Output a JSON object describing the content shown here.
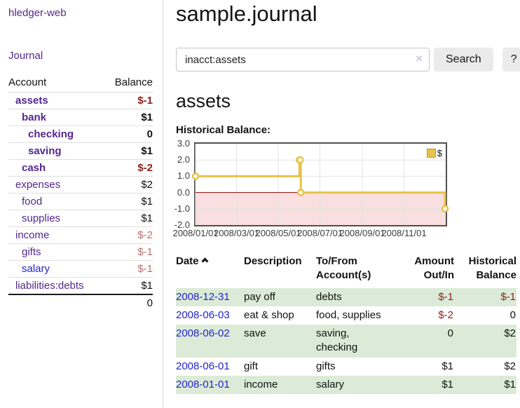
{
  "sidebar": {
    "app_title": "hledger-web",
    "journal_label": "Journal",
    "accounts_table": {
      "header_account": "Account",
      "header_balance": "Balance",
      "rows": [
        {
          "name": "assets",
          "balance": "$-1",
          "indent": 1,
          "bold": true,
          "name_color": "purple",
          "balance_tone": "negative"
        },
        {
          "name": "bank",
          "balance": "$1",
          "indent": 2,
          "bold": true,
          "name_color": "purple",
          "balance_tone": "normal"
        },
        {
          "name": "checking",
          "balance": "0",
          "indent": 3,
          "bold": true,
          "name_color": "purple",
          "balance_tone": "normal"
        },
        {
          "name": "saving",
          "balance": "$1",
          "indent": 3,
          "bold": true,
          "name_color": "purple",
          "balance_tone": "normal"
        },
        {
          "name": "cash",
          "balance": "$-2",
          "indent": 2,
          "bold": true,
          "name_color": "purple",
          "balance_tone": "negative"
        },
        {
          "name": "expenses",
          "balance": "$2",
          "indent": 1,
          "bold": false,
          "name_color": "purple",
          "balance_tone": "normal"
        },
        {
          "name": "food",
          "balance": "$1",
          "indent": 2,
          "bold": false,
          "name_color": "purple",
          "balance_tone": "normal"
        },
        {
          "name": "supplies",
          "balance": "$1",
          "indent": 2,
          "bold": false,
          "name_color": "purple",
          "balance_tone": "normal"
        },
        {
          "name": "income",
          "balance": "$-2",
          "indent": 1,
          "bold": false,
          "name_color": "purple",
          "balance_tone": "negative-soft"
        },
        {
          "name": "gifts",
          "balance": "$-1",
          "indent": 2,
          "bold": false,
          "name_color": "purple",
          "balance_tone": "negative-soft"
        },
        {
          "name": "salary",
          "balance": "$-1",
          "indent": 2,
          "bold": false,
          "name_color": "blue",
          "balance_tone": "negative-soft"
        },
        {
          "name": "liabilities:debts",
          "balance": "$1",
          "indent": 1,
          "bold": false,
          "name_color": "purple",
          "balance_tone": "normal"
        }
      ],
      "total_balance": "0"
    }
  },
  "main": {
    "title": "sample.journal",
    "search": {
      "value": "inacct:assets",
      "clear_icon": "×",
      "search_label": "Search",
      "help_label": "?"
    },
    "account_heading": "assets",
    "chart_heading": "Historical Balance:",
    "register": {
      "headers": {
        "date": "Date",
        "description": "Description",
        "accounts": "To/From\nAccount(s)",
        "amount": "Amount\nOut/In",
        "balance": "Historical\nBalance"
      },
      "sort_icon": "chevron-up",
      "rows": [
        {
          "date": "2008-12-31",
          "description": "pay off",
          "accounts": "debts",
          "amount": "$-1",
          "balance": "$-1",
          "amount_negative": true,
          "balance_negative": true
        },
        {
          "date": "2008-06-03",
          "description": "eat & shop",
          "accounts": "food, supplies",
          "amount": "$-2",
          "balance": "0",
          "amount_negative": true,
          "balance_negative": false
        },
        {
          "date": "2008-06-02",
          "description": "save",
          "accounts": "saving,\nchecking",
          "amount": "0",
          "balance": "$2",
          "amount_negative": false,
          "balance_negative": false
        },
        {
          "date": "2008-06-01",
          "description": "gift",
          "accounts": "gifts",
          "amount": "$1",
          "balance": "$2",
          "amount_negative": false,
          "balance_negative": false
        },
        {
          "date": "2008-01-01",
          "description": "income",
          "accounts": "salary",
          "amount": "$1",
          "balance": "$1",
          "amount_negative": false,
          "balance_negative": false
        }
      ]
    }
  },
  "chart_data": {
    "type": "line",
    "step": true,
    "title": "Historical Balance",
    "series": [
      {
        "name": "$",
        "points": [
          [
            "2008-01-01",
            1
          ],
          [
            "2008-06-01",
            2
          ],
          [
            "2008-06-02",
            2
          ],
          [
            "2008-06-03",
            0
          ],
          [
            "2008-12-31",
            -1
          ]
        ]
      }
    ],
    "x_domain": [
      "2008-01-01",
      "2009-01-01"
    ],
    "ylim": [
      -2,
      3
    ],
    "x_ticks": [
      {
        "label": "2008/01/01",
        "date": "2008-01-01"
      },
      {
        "label": "2008/03/01",
        "date": "2008-03-01"
      },
      {
        "label": "2008/05/01",
        "date": "2008-05-01"
      },
      {
        "label": "2008/07/01",
        "date": "2008-07-01"
      },
      {
        "label": "2008/09/01",
        "date": "2008-09-01"
      },
      {
        "label": "2008/11/01",
        "date": "2008-11-01"
      }
    ],
    "y_ticks": [
      {
        "label": "3.0",
        "value": 3
      },
      {
        "label": "2.0",
        "value": 2
      },
      {
        "label": "1.0",
        "value": 1
      },
      {
        "label": "0.0",
        "value": 0
      },
      {
        "label": "-1.0",
        "value": -1
      },
      {
        "label": "-2.0",
        "value": -2
      }
    ],
    "legend": {
      "label": "$",
      "position": "top-right"
    },
    "grid": true,
    "colors": {
      "line": "#e8c24a",
      "marker_fill": "#ffffff",
      "negative_region": "#f9dfdf",
      "zero_line": "#8b0000",
      "grid": "#e3e3e3",
      "border": "#4f4f4f",
      "legend_swatch": "#e8c24a"
    }
  }
}
